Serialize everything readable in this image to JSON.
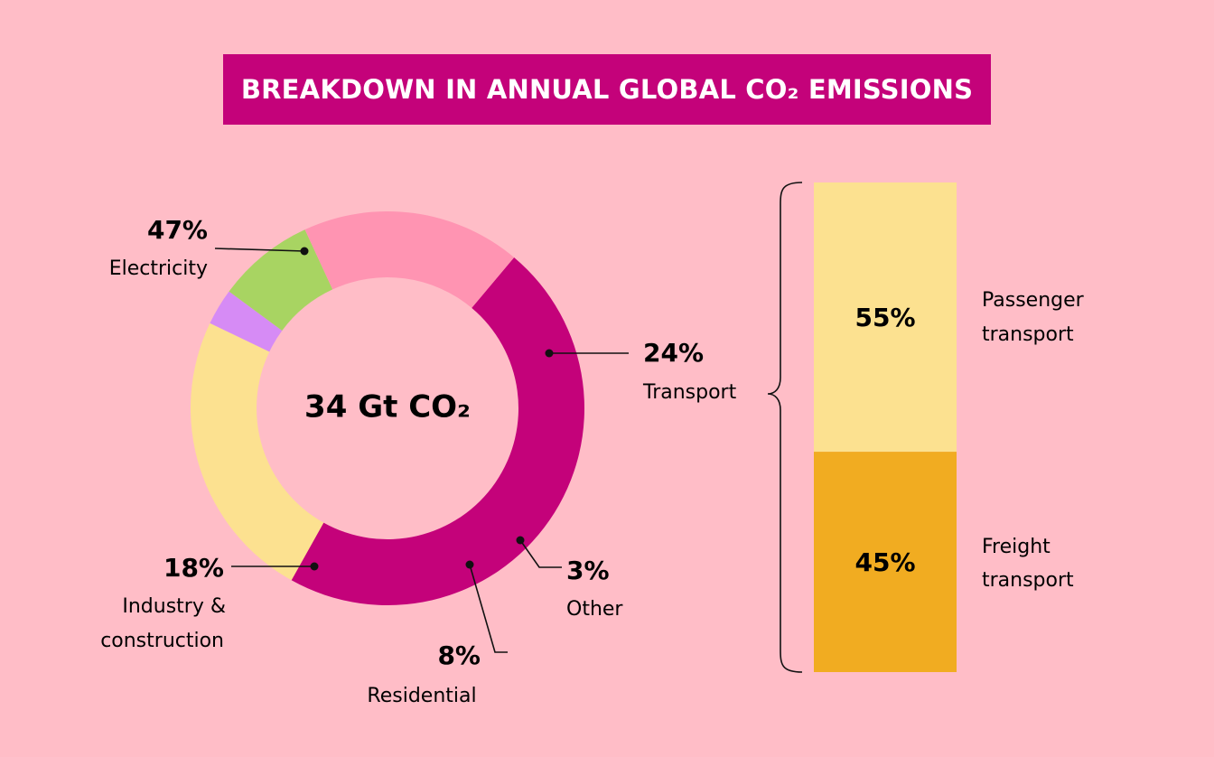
{
  "title": "BREAKDOWN IN ANNUAL GLOBAL CO₂ EMISSIONS",
  "colors": {
    "background": "#FFBDC7",
    "title_bar": "#C4027A",
    "electricity": "#C4027A",
    "transport": "#FCE190",
    "other": "#D68BF5",
    "residential": "#A8D462",
    "industry": "#FF94B2",
    "passenger": "#FCE190",
    "freight": "#F1AC21"
  },
  "chart_data": [
    {
      "type": "pie",
      "variant": "donut",
      "center_label": "34 Gt CO₂",
      "slices": [
        {
          "key": "electricity",
          "label": "Electricity",
          "value": 47,
          "value_label": "47%"
        },
        {
          "key": "transport",
          "label": "Transport",
          "value": 24,
          "value_label": "24%"
        },
        {
          "key": "other",
          "label": "Other",
          "value": 3,
          "value_label": "3%"
        },
        {
          "key": "residential",
          "label": "Residential",
          "value": 8,
          "value_label": "8%"
        },
        {
          "key": "industry",
          "label": "Industry & construction",
          "label_lines": [
            "Industry &",
            "construction"
          ],
          "value": 18,
          "value_label": "18%"
        }
      ]
    },
    {
      "type": "bar",
      "variant": "100% stacked",
      "breakdown_of": "Transport",
      "segments": [
        {
          "key": "passenger",
          "label": "Passenger transport",
          "label_lines": [
            "Passenger",
            "transport"
          ],
          "value": 55,
          "value_label": "55%"
        },
        {
          "key": "freight",
          "label": "Freight transport",
          "label_lines": [
            "Freight",
            "transport"
          ],
          "value": 45,
          "value_label": "45%"
        }
      ]
    }
  ]
}
